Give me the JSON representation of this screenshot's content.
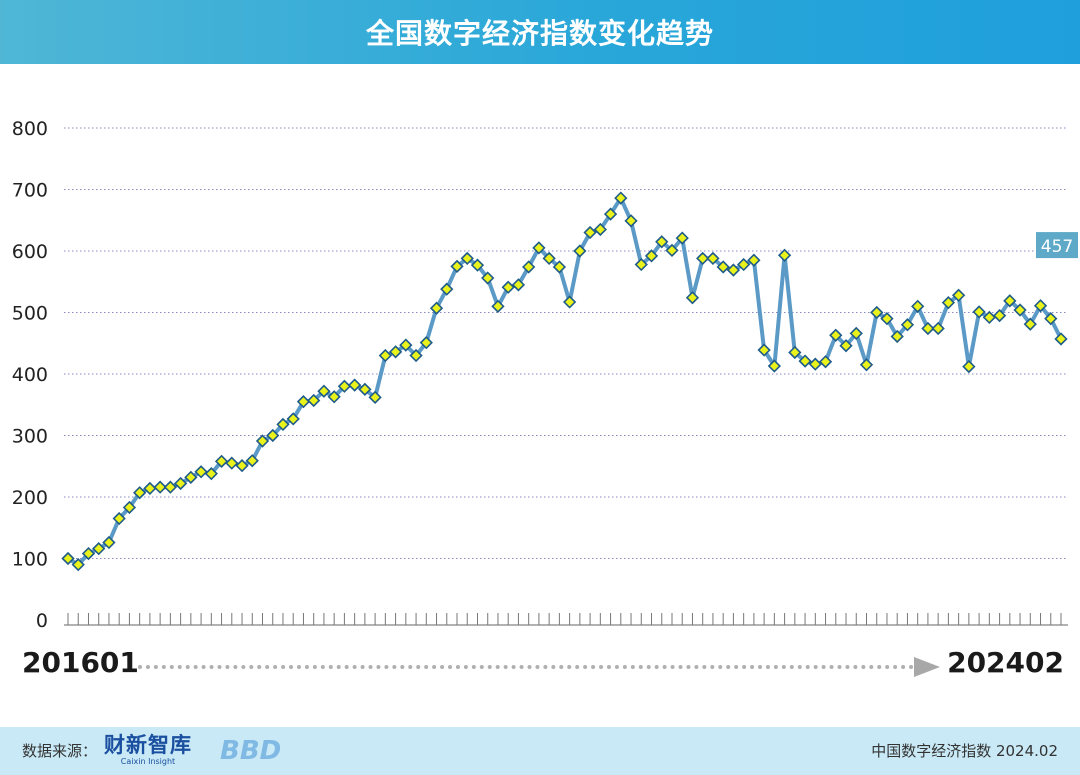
{
  "header": {
    "title": "全国数字经济指数变化趋势"
  },
  "footer": {
    "source_label": "数据来源：",
    "logo_cn": "财新智库",
    "logo_en": "Caixin Insight",
    "logo2": "BBD",
    "right_text": "中国数字经济指数 2024.02"
  },
  "range": {
    "start": "201601",
    "end": "202402"
  },
  "colors": {
    "line": "#5b9ac6",
    "marker_fill": "#e9f21b",
    "marker_stroke": "#1e5b8a",
    "grid": "#8a8ac0",
    "last_label_bg": "#5fa9c8"
  },
  "chart_data": {
    "type": "line",
    "title": "全国数字经济指数变化趋势",
    "xlabel": "",
    "ylabel": "",
    "ylim": [
      0,
      800
    ],
    "yticks": [
      0,
      100,
      200,
      300,
      400,
      500,
      600,
      700,
      800
    ],
    "grid": true,
    "x_start": "201601",
    "x_end": "202402",
    "last_value_label": "457",
    "values": [
      100,
      90,
      108,
      116,
      126,
      165,
      183,
      207,
      214,
      216,
      216,
      222,
      232,
      241,
      238,
      258,
      255,
      251,
      259,
      291,
      300,
      318,
      327,
      355,
      357,
      372,
      363,
      380,
      382,
      375,
      362,
      430,
      436,
      447,
      430,
      451,
      507,
      538,
      575,
      588,
      577,
      556,
      510,
      541,
      545,
      574,
      605,
      588,
      574,
      517,
      600,
      630,
      635,
      660,
      686,
      649,
      578,
      592,
      615,
      601,
      621,
      524,
      588,
      588,
      574,
      569,
      578,
      585,
      439,
      413,
      593,
      435,
      421,
      416,
      420,
      463,
      446,
      466,
      415,
      500,
      490,
      461,
      480,
      510,
      474,
      474,
      516,
      528,
      412,
      501,
      492,
      495,
      519,
      504,
      481,
      511,
      490,
      457
    ]
  }
}
